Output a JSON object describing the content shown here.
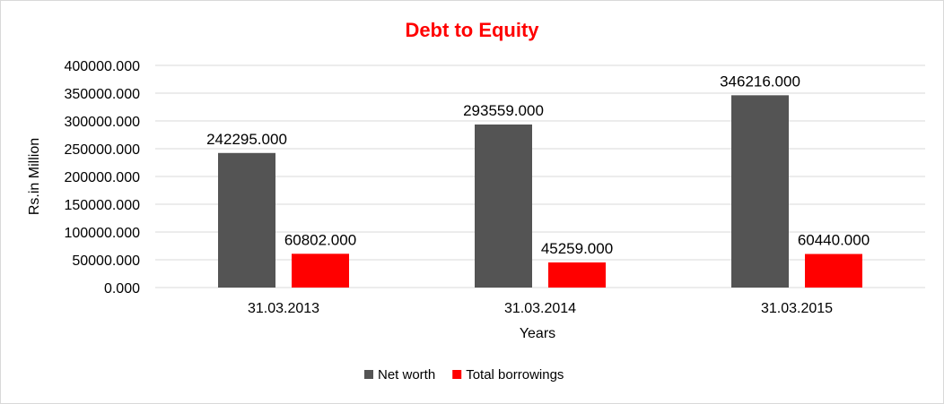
{
  "chart_data": {
    "type": "bar",
    "title": "Debt to Equity",
    "title_color": "#ff0000",
    "xlabel": "Years",
    "ylabel": "Rs.in Million",
    "categories": [
      "31.03.2013",
      "31.03.2014",
      "31.03.2015"
    ],
    "series": [
      {
        "name": "Net worth",
        "color": "#545454",
        "values": [
          242295,
          293559,
          346216
        ],
        "labels": [
          "242295.000",
          "293559.000",
          "346216.000"
        ]
      },
      {
        "name": "Total borrowings",
        "color": "#ff0000",
        "values": [
          60802,
          45259,
          60440
        ],
        "labels": [
          "60802.000",
          "45259.000",
          "60440.000"
        ]
      }
    ],
    "ylim": [
      0,
      400000
    ],
    "yticks": [
      0,
      50000,
      100000,
      150000,
      200000,
      250000,
      300000,
      350000,
      400000
    ],
    "ytick_labels": [
      "0.000",
      "50000.000",
      "100000.000",
      "150000.000",
      "200000.000",
      "250000.000",
      "300000.000",
      "350000.000",
      "400000.000"
    ],
    "grid": true,
    "legend_position": "bottom"
  }
}
